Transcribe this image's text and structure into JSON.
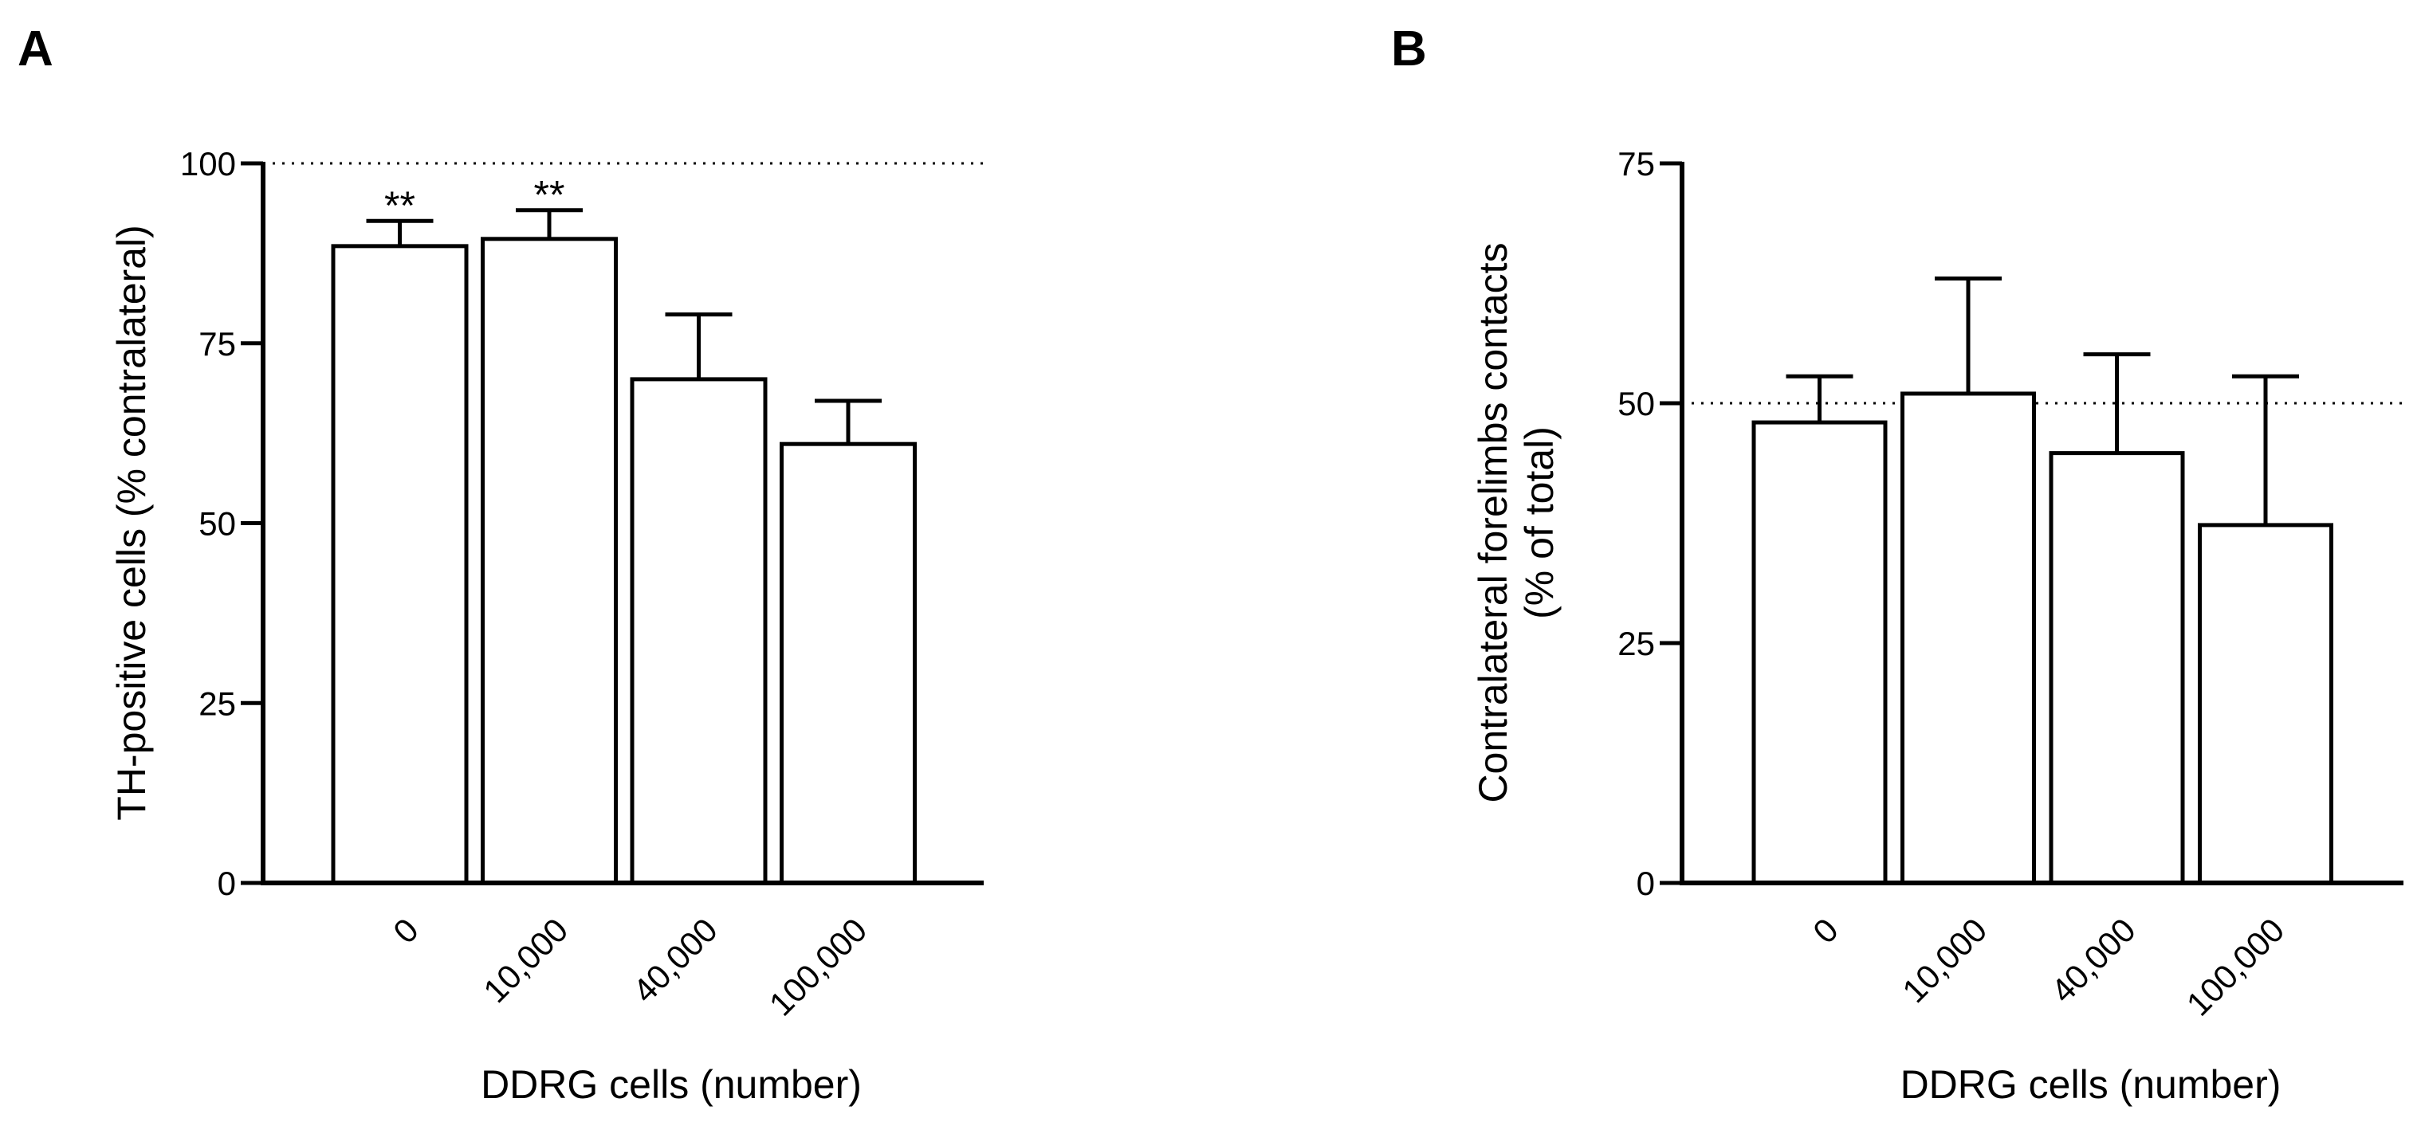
{
  "colors": {
    "ink": "#000000",
    "bar_fill": "#ffffff"
  },
  "panels": [
    {
      "letter": "A"
    },
    {
      "letter": "B"
    }
  ],
  "chart_data": [
    {
      "type": "bar",
      "panel": "A",
      "categories": [
        "0",
        "10,000",
        "40,000",
        "100,000"
      ],
      "values": [
        88.5,
        89.5,
        70,
        61
      ],
      "error_upper": [
        3.5,
        4,
        9,
        6
      ],
      "significance": [
        "**",
        "**",
        "",
        ""
      ],
      "reference_line": 100,
      "xlabel": "DDRG cells (number)",
      "ylabel": "TH-positive cells (% contralateral)",
      "ylim": [
        0,
        100
      ],
      "yticks": [
        0,
        25,
        50,
        75,
        100
      ],
      "grid": false
    },
    {
      "type": "bar",
      "panel": "B",
      "categories": [
        "0",
        "10,000",
        "40,000",
        "100,000"
      ],
      "values": [
        48,
        51,
        44.8,
        37.3
      ],
      "error_upper": [
        4.8,
        12,
        10.3,
        15.5
      ],
      "reference_line": 50,
      "xlabel": "DDRG cells (number)",
      "ylabel_lines": [
        "Contralateral forelimbs contacts",
        "(% of total)"
      ],
      "ylim": [
        0,
        75
      ],
      "yticks": [
        0,
        25,
        50,
        75
      ],
      "grid": false
    }
  ]
}
